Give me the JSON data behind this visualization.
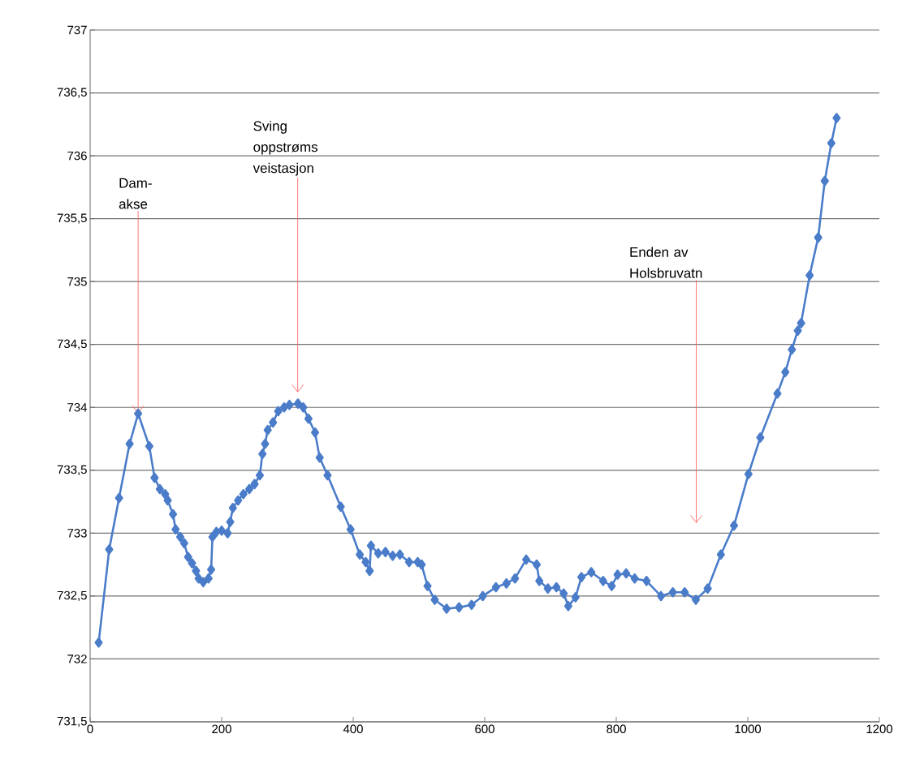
{
  "chart_data": {
    "type": "line",
    "marker": "diamond",
    "grid": "y",
    "x": [
      13,
      29,
      44,
      60,
      73,
      90,
      98,
      106,
      114,
      118,
      126,
      130,
      137,
      143,
      149,
      155,
      161,
      165,
      172,
      180,
      184,
      186,
      192,
      200,
      209,
      213,
      217,
      225,
      233,
      242,
      250,
      258,
      262,
      266,
      270,
      278,
      286,
      295,
      303,
      316,
      324,
      332,
      342,
      349,
      361,
      381,
      396,
      410,
      419,
      425,
      427,
      438,
      449,
      460,
      471,
      485,
      498,
      504,
      513,
      524,
      542,
      561,
      580,
      597,
      617,
      633,
      646,
      663,
      679,
      683,
      696,
      709,
      720,
      727,
      738,
      747,
      762,
      780,
      793,
      802,
      815,
      828,
      846,
      868,
      886,
      904,
      921,
      939,
      959,
      979,
      1001,
      1019,
      1045,
      1057,
      1067,
      1076,
      1081,
      1094,
      1107,
      1117,
      1127,
      1135
    ],
    "series": [
      {
        "color": "#4a7cc9",
        "values": [
          732.13,
          732.87,
          733.28,
          733.71,
          733.95,
          733.69,
          733.44,
          733.35,
          733.31,
          733.26,
          733.15,
          733.03,
          732.97,
          732.92,
          732.81,
          732.76,
          732.7,
          732.64,
          732.61,
          732.64,
          732.71,
          732.97,
          733.01,
          733.02,
          733.0,
          733.09,
          733.2,
          733.26,
          733.31,
          733.35,
          733.39,
          733.46,
          733.63,
          733.71,
          733.82,
          733.88,
          733.97,
          734.0,
          734.02,
          734.03,
          734.0,
          733.91,
          733.8,
          733.6,
          733.46,
          733.21,
          733.03,
          732.83,
          732.77,
          732.7,
          732.9,
          732.84,
          732.85,
          732.82,
          732.83,
          732.77,
          732.77,
          732.75,
          732.58,
          732.47,
          732.4,
          732.41,
          732.43,
          732.5,
          732.57,
          732.6,
          732.64,
          732.79,
          732.75,
          732.62,
          732.56,
          732.57,
          732.52,
          732.42,
          732.49,
          732.65,
          732.69,
          732.62,
          732.58,
          732.67,
          732.68,
          732.64,
          732.62,
          732.5,
          732.53,
          732.53,
          732.47,
          732.56,
          732.83,
          733.06,
          733.47,
          733.76,
          734.11,
          734.28,
          734.46,
          734.61,
          734.67,
          735.05,
          735.35,
          735.8,
          736.1,
          736.3
        ]
      }
    ],
    "xlim": [
      0,
      1200
    ],
    "xticks": [
      0,
      200,
      400,
      600,
      800,
      1000,
      1200
    ],
    "ylim": [
      731.5,
      737
    ],
    "yticks": [
      {
        "value": 731.5,
        "label": "731,5"
      },
      {
        "value": 732,
        "label": "732"
      },
      {
        "value": 732.5,
        "label": "732,5"
      },
      {
        "value": 733,
        "label": "733"
      },
      {
        "value": 733.5,
        "label": "733,5"
      },
      {
        "value": 734,
        "label": "734"
      },
      {
        "value": 734.5,
        "label": "734,5"
      },
      {
        "value": 735,
        "label": "735"
      },
      {
        "value": 735.5,
        "label": "735,5"
      },
      {
        "value": 736,
        "label": "736"
      },
      {
        "value": 736.5,
        "label": "736,5"
      },
      {
        "value": 737,
        "label": "737"
      }
    ],
    "annotations": [
      {
        "text": "Dam-akse",
        "x": 73,
        "y": 733.95
      },
      "Sving oppstrøms veistasjon",
      "Enden av Holsbruvatn"
    ]
  }
}
